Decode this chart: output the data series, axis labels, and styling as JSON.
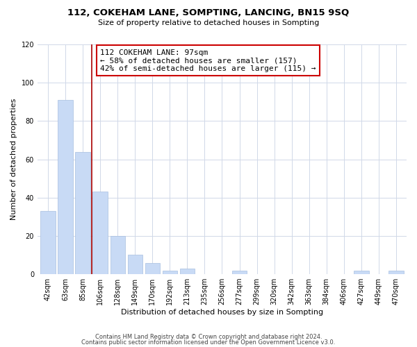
{
  "title": "112, COKEHAM LANE, SOMPTING, LANCING, BN15 9SQ",
  "subtitle": "Size of property relative to detached houses in Sompting",
  "xlabel": "Distribution of detached houses by size in Sompting",
  "ylabel": "Number of detached properties",
  "bar_labels": [
    "42sqm",
    "63sqm",
    "85sqm",
    "106sqm",
    "128sqm",
    "149sqm",
    "170sqm",
    "192sqm",
    "213sqm",
    "235sqm",
    "256sqm",
    "277sqm",
    "299sqm",
    "320sqm",
    "342sqm",
    "363sqm",
    "384sqm",
    "406sqm",
    "427sqm",
    "449sqm",
    "470sqm"
  ],
  "bar_values": [
    33,
    91,
    64,
    43,
    20,
    10,
    6,
    2,
    3,
    0,
    0,
    2,
    0,
    0,
    0,
    0,
    0,
    0,
    2,
    0,
    2
  ],
  "bar_color": "#c8daf5",
  "bar_edge_color": "#a8bfe0",
  "vline_color": "#aa0000",
  "annotation_title": "112 COKEHAM LANE: 97sqm",
  "annotation_line1": "← 58% of detached houses are smaller (157)",
  "annotation_line2": "42% of semi-detached houses are larger (115) →",
  "annotation_box_color": "#ffffff",
  "annotation_box_edge": "#cc0000",
  "ylim": [
    0,
    120
  ],
  "yticks": [
    0,
    20,
    40,
    60,
    80,
    100,
    120
  ],
  "footer1": "Contains HM Land Registry data © Crown copyright and database right 2024.",
  "footer2": "Contains public sector information licensed under the Open Government Licence v3.0.",
  "bg_color": "#ffffff",
  "grid_color": "#d0d8e8",
  "title_fontsize": 9.5,
  "subtitle_fontsize": 8,
  "tick_fontsize": 7,
  "label_fontsize": 8,
  "ann_fontsize": 8,
  "footer_fontsize": 6
}
